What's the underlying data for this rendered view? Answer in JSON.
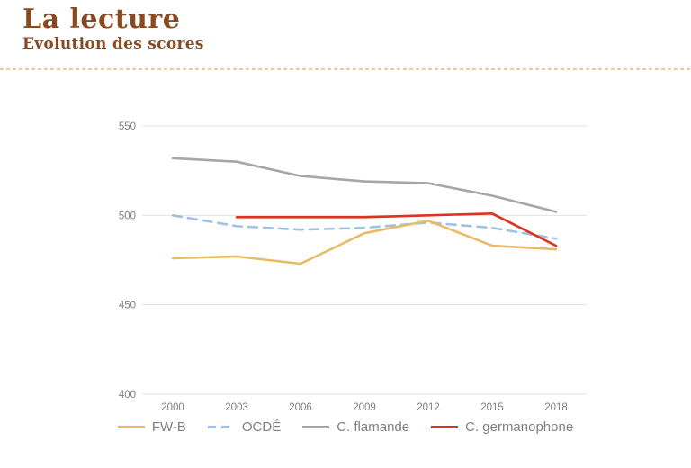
{
  "header": {
    "title": "La lecture",
    "subtitle": "Evolution des scores",
    "accent_color": "#8a4a21",
    "divider_color": "#ecc9a2"
  },
  "chart_data": {
    "type": "line",
    "title": "La lecture — Evolution des scores",
    "categories": [
      "2000",
      "2003",
      "2006",
      "2009",
      "2012",
      "2015",
      "2018"
    ],
    "series": [
      {
        "name": "FW-B",
        "color": "#e8bb67",
        "style": "solid",
        "values": [
          476,
          477,
          473,
          490,
          497,
          483,
          481
        ]
      },
      {
        "name": "OCDÉ",
        "color": "#9cc3e5",
        "style": "dashed",
        "values": [
          500,
          494,
          492,
          493,
          496,
          493,
          487
        ]
      },
      {
        "name": "C. flamande",
        "color": "#a6a6a6",
        "style": "solid",
        "values": [
          532,
          530,
          522,
          519,
          518,
          511,
          502
        ]
      },
      {
        "name": "C. germanophone",
        "color": "#e0301e",
        "style": "solid",
        "values": [
          null,
          499,
          499,
          499,
          500,
          501,
          483
        ]
      }
    ],
    "xlabel": "",
    "ylabel": "",
    "ylim": [
      400,
      550
    ],
    "yticks": [
      "550",
      "500",
      "450",
      "400"
    ],
    "grid": "horizontal",
    "legend_position": "bottom",
    "tick_color": "#7f7f7f",
    "gridline_color": "#e3e3e3"
  }
}
